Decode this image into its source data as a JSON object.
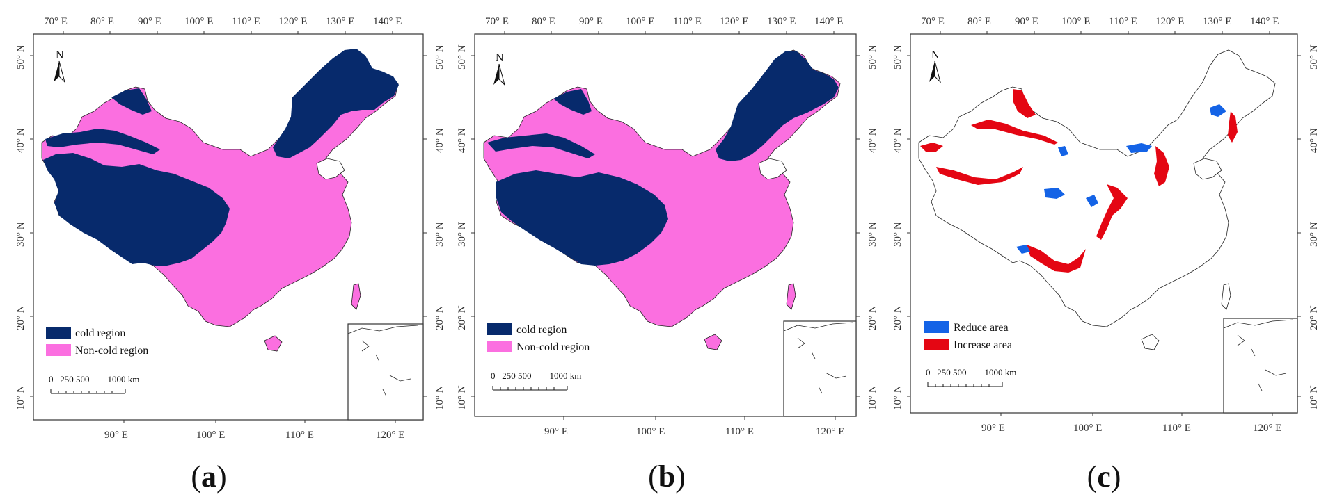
{
  "colors": {
    "cold": "#072a6c",
    "noncold": "#fb6fe0",
    "reduce": "#1463e6",
    "increase": "#e40613",
    "frame": "#333333"
  },
  "axes": {
    "top_ticks": [
      "70° E",
      "80° E",
      "90° E",
      "100° E",
      "110° E",
      "120° E",
      "130° E",
      "140° E"
    ],
    "bottom_ticks": [
      "90° E",
      "100° E",
      "110° E",
      "120° E"
    ],
    "left_ticks": [
      "50° N",
      "40° N",
      "30° N",
      "20° N",
      "10° N"
    ],
    "right_ticks": [
      "50° N",
      "40° N",
      "30° N",
      "20° N",
      "10° N"
    ]
  },
  "panels": [
    {
      "id": "a",
      "caption": "a",
      "north_label": "N",
      "legend": [
        {
          "label": "cold region",
          "color": "#072a6c"
        },
        {
          "label": "Non-cold region",
          "color": "#fb6fe0"
        }
      ],
      "scale": {
        "label": "0   250 500        1000 km"
      }
    },
    {
      "id": "b",
      "caption": "b",
      "north_label": "N",
      "legend": [
        {
          "label": "cold region",
          "color": "#072a6c"
        },
        {
          "label": "Non-cold region",
          "color": "#fb6fe0"
        }
      ],
      "scale": {
        "label": "0   250 500        1000 km"
      }
    },
    {
      "id": "c",
      "caption": "c",
      "north_label": "N",
      "legend": [
        {
          "label": "Reduce area",
          "color": "#1463e6"
        },
        {
          "label": "Increase area",
          "color": "#e40613"
        }
      ],
      "scale": {
        "label": "0   250 500        1000 km"
      }
    }
  ]
}
